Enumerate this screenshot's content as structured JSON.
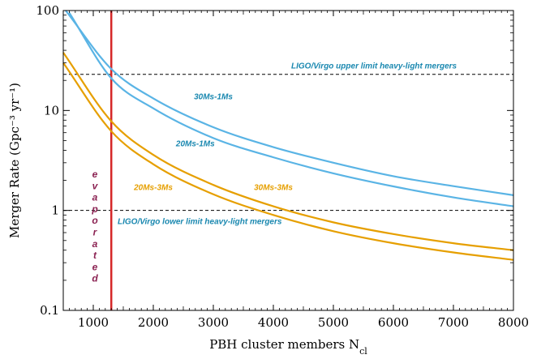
{
  "chart_data": {
    "type": "line",
    "xlabel": "PBH cluster members N",
    "xlabel_sub": "cl",
    "ylabel": "Merger Rate (Gpc⁻³ yr⁻¹)",
    "xlim": [
      500,
      8000
    ],
    "ylim": [
      0.1,
      100
    ],
    "yscale": "log",
    "grid": false,
    "x_ticks": [
      1000,
      2000,
      3000,
      4000,
      5000,
      6000,
      7000,
      8000
    ],
    "y_ticks": [
      {
        "value": 0.1,
        "label": "0.1"
      },
      {
        "value": 1,
        "label": "1"
      },
      {
        "value": 10,
        "label": "10"
      },
      {
        "value": 100,
        "label": "100"
      }
    ],
    "series": [
      {
        "name": "30Ms-1Ms",
        "color": "#5ab4e5",
        "x": [
          540,
          1300,
          2000,
          3000,
          4000,
          5000,
          6000,
          7000,
          8000
        ],
        "y": [
          100,
          26,
          13.2,
          6.8,
          4.3,
          3.0,
          2.2,
          1.75,
          1.42
        ]
      },
      {
        "name": "20Ms-1Ms",
        "color": "#5ab4e5",
        "x": [
          600,
          1300,
          2000,
          3000,
          4000,
          5000,
          6000,
          7000,
          8000
        ],
        "y": [
          95,
          21,
          10.5,
          5.3,
          3.4,
          2.35,
          1.74,
          1.35,
          1.1
        ]
      },
      {
        "name": "30Ms-3Ms",
        "color": "#e69f00",
        "x": [
          500,
          1300,
          2000,
          3000,
          4000,
          5000,
          6000,
          7000,
          8000
        ],
        "y": [
          38,
          7.8,
          3.6,
          1.8,
          1.1,
          0.76,
          0.58,
          0.47,
          0.4
        ]
      },
      {
        "name": "20Ms-3Ms",
        "color": "#e69f00",
        "x": [
          500,
          1300,
          2000,
          3000,
          4000,
          5000,
          6000,
          7000,
          8000
        ],
        "y": [
          30,
          6.2,
          2.9,
          1.45,
          0.9,
          0.62,
          0.47,
          0.38,
          0.32
        ]
      }
    ],
    "reference_lines": [
      {
        "orientation": "horizontal",
        "y": 23,
        "style": "dashed",
        "label": "LIGO/Virgo upper limit heavy-light mergers"
      },
      {
        "orientation": "horizontal",
        "y": 1,
        "style": "dashed",
        "label": "LIGO/Virgo lower limit heavy-light mergers"
      },
      {
        "orientation": "vertical",
        "x": 1300,
        "color": "#d62728",
        "label": "evaporated"
      }
    ],
    "annotations": [
      {
        "text": "30Ms-1Ms",
        "color": "#1a88b0",
        "x": 3000,
        "y": 13
      },
      {
        "text": "20Ms-1Ms",
        "color": "#1a88b0",
        "x": 2700,
        "y": 4.4
      },
      {
        "text": "20Ms-3Ms",
        "color": "#e69f00",
        "x": 2000,
        "y": 1.6
      },
      {
        "text": "30Ms-3Ms",
        "color": "#e69f00",
        "x": 4000,
        "y": 1.6
      }
    ],
    "evaporated_letters": [
      "e",
      "v",
      "a",
      "p",
      "o",
      "r",
      "a",
      "t",
      "e",
      "d"
    ],
    "evaporated_color": "#8b2252"
  }
}
